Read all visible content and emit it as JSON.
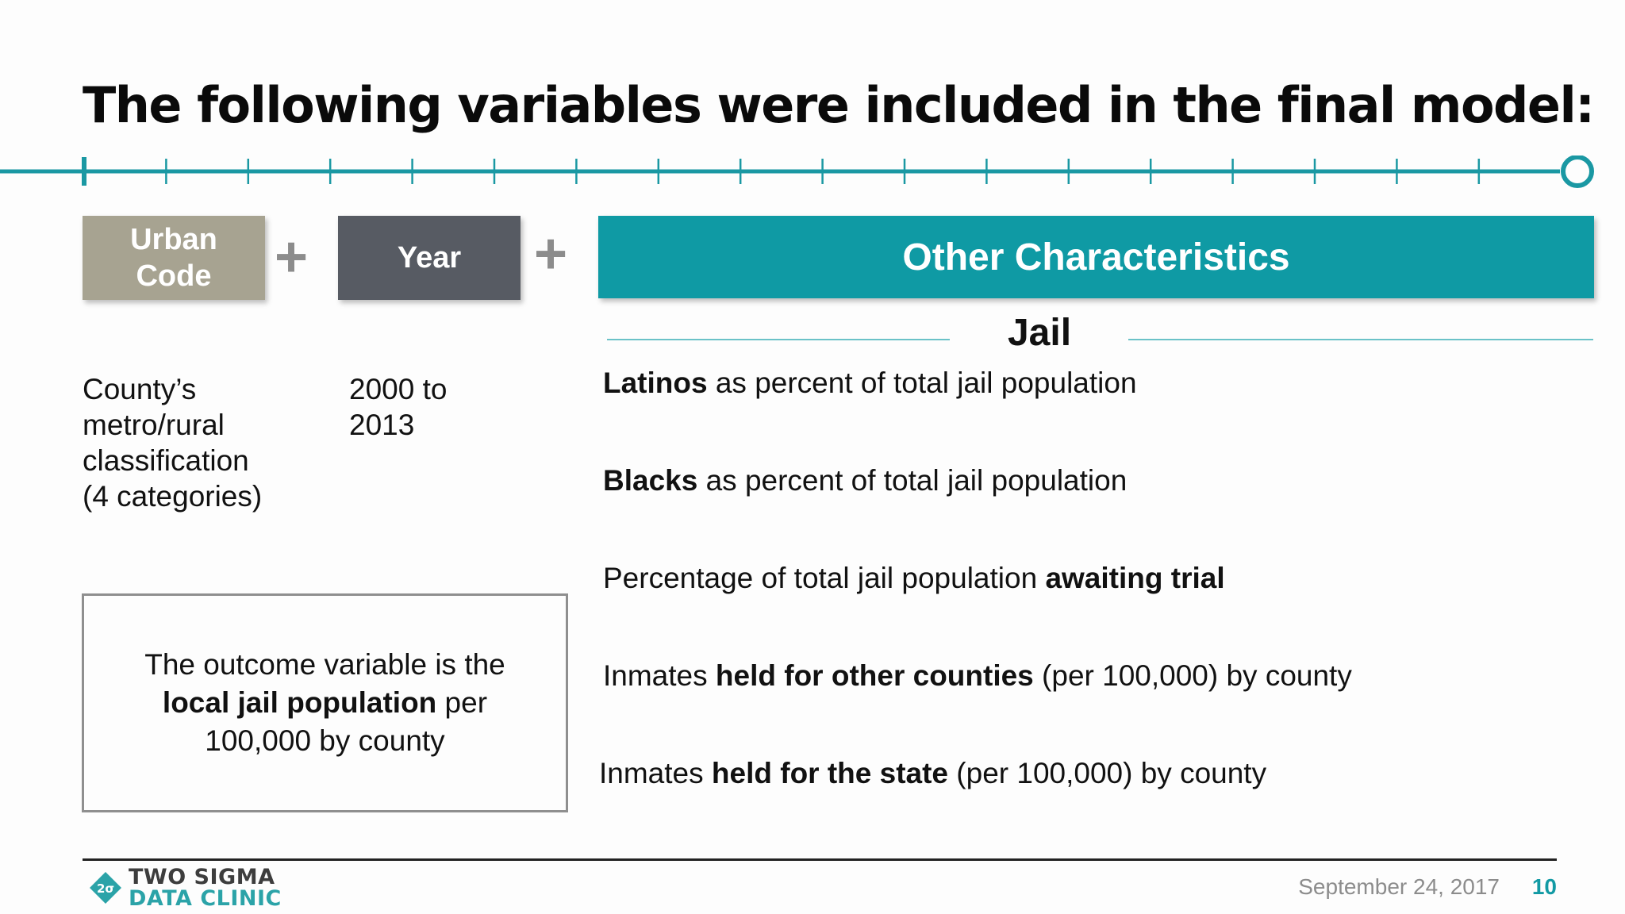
{
  "slide": {
    "title": "The following variables were included in the final model:"
  },
  "boxes": {
    "urban_line1": "Urban",
    "urban_line2": "Code",
    "year": "Year",
    "other": "Other Characteristics"
  },
  "section": {
    "title": "Jail"
  },
  "descriptions": {
    "urban": [
      "County’s",
      "metro/rural",
      "classification",
      "(4 categories)"
    ],
    "year": [
      "2000 to",
      "2013"
    ]
  },
  "variables": [
    {
      "bold": "Latinos",
      "after": " as percent of total jail population"
    },
    {
      "bold": "Blacks",
      "after": " as percent of total jail population"
    },
    {
      "before": "Percentage of total jail population ",
      "bold": "awaiting trial"
    },
    {
      "before": "Inmates ",
      "bold": "held for other counties",
      "after": " (per 100,000) by county"
    },
    {
      "before": "Inmates ",
      "bold": "held for the state",
      "after": " (per 100,000) by county"
    }
  ],
  "outcome": {
    "line1": "The outcome variable is the",
    "bold": "local jail population",
    "after_bold": " per",
    "line3": "100,000 by county"
  },
  "footer": {
    "logo_line1": "TWO SIGMA",
    "logo_line2": "DATA CLINIC",
    "logo_mark": "2σ",
    "date": "September 24, 2017",
    "page_number": "10"
  },
  "colors": {
    "accent_teal": "#0f9aa4",
    "urban_box": "#a7a391",
    "year_box": "#575b63"
  }
}
